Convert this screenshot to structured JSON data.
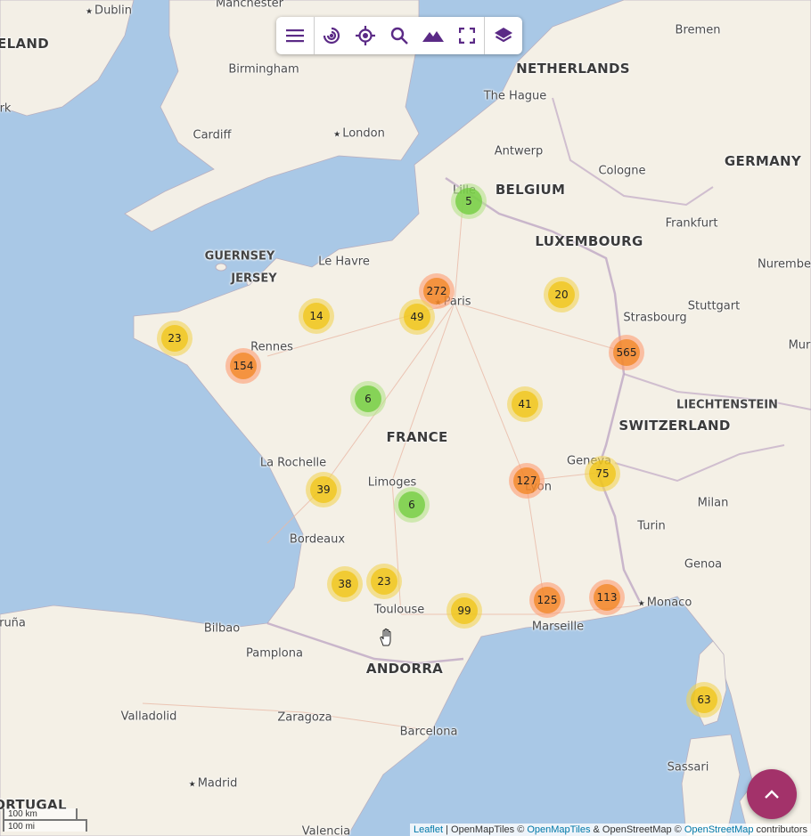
{
  "map": {
    "place_labels": [
      {
        "id": "dublin",
        "text": "Dublin",
        "kind": "capital"
      },
      {
        "id": "manchester",
        "text": "Manchester",
        "kind": "city"
      },
      {
        "id": "eland",
        "text": "ELAND",
        "kind": "country"
      },
      {
        "id": "birmingham",
        "text": "Birmingham",
        "kind": "city"
      },
      {
        "id": "cardiff",
        "text": "Cardiff",
        "kind": "city"
      },
      {
        "id": "london",
        "text": "London",
        "kind": "capital"
      },
      {
        "id": "bremen",
        "text": "Bremen",
        "kind": "city"
      },
      {
        "id": "netherlands",
        "text": "NETHERLANDS",
        "kind": "country"
      },
      {
        "id": "thehague",
        "text": "The Hague",
        "kind": "city"
      },
      {
        "id": "antwerp",
        "text": "Antwerp",
        "kind": "city"
      },
      {
        "id": "cologne",
        "text": "Cologne",
        "kind": "city"
      },
      {
        "id": "germany",
        "text": "GERMANY",
        "kind": "country"
      },
      {
        "id": "belgium",
        "text": "BELGIUM",
        "kind": "country"
      },
      {
        "id": "lille",
        "text": "Lille",
        "kind": "city"
      },
      {
        "id": "frankfurt",
        "text": "Frankfurt",
        "kind": "city"
      },
      {
        "id": "luxembourg",
        "text": "LUXEMBOURG",
        "kind": "country"
      },
      {
        "id": "guernsey",
        "text": "GUERNSEY",
        "kind": "region"
      },
      {
        "id": "jersey",
        "text": "JERSEY",
        "kind": "region"
      },
      {
        "id": "lehavre",
        "text": "Le Havre",
        "kind": "city"
      },
      {
        "id": "paris",
        "text": "Paris",
        "kind": "capital"
      },
      {
        "id": "nuremberg",
        "text": "Nurembe",
        "kind": "city"
      },
      {
        "id": "stuttgart",
        "text": "Stuttgart",
        "kind": "city"
      },
      {
        "id": "strasbourg",
        "text": "Strasbourg",
        "kind": "city"
      },
      {
        "id": "rennes",
        "text": "Rennes",
        "kind": "city"
      },
      {
        "id": "mun",
        "text": "Mur",
        "kind": "city"
      },
      {
        "id": "liechtenstein",
        "text": "LIECHTENSTEIN",
        "kind": "region"
      },
      {
        "id": "switzerland",
        "text": "SWITZERLAND",
        "kind": "country"
      },
      {
        "id": "france",
        "text": "FRANCE",
        "kind": "country"
      },
      {
        "id": "larochelle",
        "text": "La Rochelle",
        "kind": "city"
      },
      {
        "id": "limoges",
        "text": "Limoges",
        "kind": "city"
      },
      {
        "id": "geneva",
        "text": "Geneva",
        "kind": "city"
      },
      {
        "id": "lyon",
        "text": "Lyon",
        "kind": "city"
      },
      {
        "id": "milan",
        "text": "Milan",
        "kind": "city"
      },
      {
        "id": "bordeaux",
        "text": "Bordeaux",
        "kind": "city"
      },
      {
        "id": "turin",
        "text": "Turin",
        "kind": "city"
      },
      {
        "id": "genoa",
        "text": "Genoa",
        "kind": "city"
      },
      {
        "id": "monaco",
        "text": "Monaco",
        "kind": "capital"
      },
      {
        "id": "toulouse",
        "text": "Toulouse",
        "kind": "city"
      },
      {
        "id": "marseille",
        "text": "Marseille",
        "kind": "city"
      },
      {
        "id": "bilbao",
        "text": "Bilbao",
        "kind": "city"
      },
      {
        "id": "runa",
        "text": "ruña",
        "kind": "city"
      },
      {
        "id": "pamplona",
        "text": "Pamplona",
        "kind": "city"
      },
      {
        "id": "andorra",
        "text": "ANDORRA",
        "kind": "country"
      },
      {
        "id": "valladolid",
        "text": "Valladolid",
        "kind": "city"
      },
      {
        "id": "zaragoza",
        "text": "Zaragoza",
        "kind": "city"
      },
      {
        "id": "barcelona",
        "text": "Barcelona",
        "kind": "city"
      },
      {
        "id": "sassari",
        "text": "Sassari",
        "kind": "city"
      },
      {
        "id": "madrid",
        "text": "Madrid",
        "kind": "capital"
      },
      {
        "id": "portugal",
        "text": "ORTUGAL",
        "kind": "country"
      },
      {
        "id": "valencia",
        "text": "Valencia",
        "kind": "city"
      },
      {
        "id": "rk",
        "text": "rk",
        "kind": "city"
      }
    ],
    "clusters": [
      {
        "id": "lille",
        "count": "5",
        "size": "small"
      },
      {
        "id": "paris",
        "count": "272",
        "size": "large"
      },
      {
        "id": "champagne",
        "count": "20",
        "size": "medium"
      },
      {
        "id": "normandy",
        "count": "14",
        "size": "medium"
      },
      {
        "id": "idf-west",
        "count": "49",
        "size": "medium"
      },
      {
        "id": "brittany-west",
        "count": "23",
        "size": "medium"
      },
      {
        "id": "brittany",
        "count": "154",
        "size": "large"
      },
      {
        "id": "alsace",
        "count": "565",
        "size": "large"
      },
      {
        "id": "loire",
        "count": "6",
        "size": "small"
      },
      {
        "id": "burgundy",
        "count": "41",
        "size": "medium"
      },
      {
        "id": "geneva",
        "count": "75",
        "size": "medium"
      },
      {
        "id": "lyon",
        "count": "127",
        "size": "large"
      },
      {
        "id": "charente",
        "count": "39",
        "size": "medium"
      },
      {
        "id": "limousin",
        "count": "6",
        "size": "small"
      },
      {
        "id": "gascony",
        "count": "38",
        "size": "medium"
      },
      {
        "id": "toulouse",
        "count": "23",
        "size": "medium"
      },
      {
        "id": "montpellier",
        "count": "99",
        "size": "medium"
      },
      {
        "id": "marseille",
        "count": "125",
        "size": "large"
      },
      {
        "id": "nice",
        "count": "113",
        "size": "large"
      },
      {
        "id": "corsica",
        "count": "63",
        "size": "medium"
      }
    ]
  },
  "toolbar": {
    "buttons": [
      {
        "id": "menu",
        "icon": "hamburger-menu-icon"
      },
      {
        "id": "spiral",
        "icon": "spiral-icon"
      },
      {
        "id": "locate",
        "icon": "crosshair-locate-icon"
      },
      {
        "id": "search",
        "icon": "search-icon"
      },
      {
        "id": "terrain",
        "icon": "mountain-icon"
      },
      {
        "id": "fullscreen",
        "icon": "fullscreen-icon"
      },
      {
        "id": "layers",
        "icon": "layers-icon"
      }
    ],
    "accent_color": "#5b2a86"
  },
  "scale": {
    "km": "100 km",
    "mi": "100 mi"
  },
  "attribution": {
    "leaflet": "Leaflet",
    "sep1": " | OpenMapTiles © ",
    "openmaptiles": "OpenMapTiles",
    "sep2": " & OpenStreetMap © ",
    "osm": "OpenStreetMap",
    "tail": " contributors"
  },
  "fab": {
    "icon": "chevron-up-icon",
    "color": "#a3326a"
  }
}
